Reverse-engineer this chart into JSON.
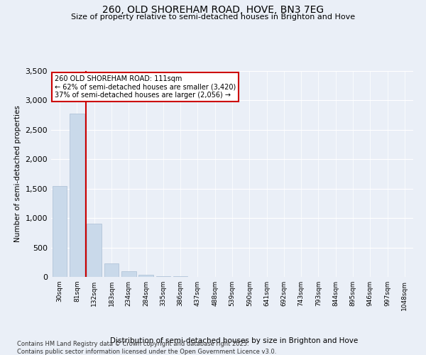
{
  "title1": "260, OLD SHOREHAM ROAD, HOVE, BN3 7EG",
  "title2": "Size of property relative to semi-detached houses in Brighton and Hove",
  "xlabel": "Distribution of semi-detached houses by size in Brighton and Hove",
  "ylabel": "Number of semi-detached properties",
  "bar_color": "#c9d9ea",
  "bar_edge_color": "#aabfd4",
  "categories": [
    "30sqm",
    "81sqm",
    "132sqm",
    "183sqm",
    "234sqm",
    "284sqm",
    "335sqm",
    "386sqm",
    "437sqm",
    "488sqm",
    "539sqm",
    "590sqm",
    "641sqm",
    "692sqm",
    "743sqm",
    "793sqm",
    "844sqm",
    "895sqm",
    "946sqm",
    "997sqm",
    "1048sqm"
  ],
  "values": [
    1540,
    2770,
    900,
    230,
    100,
    35,
    18,
    8,
    0,
    0,
    0,
    0,
    0,
    0,
    0,
    0,
    0,
    0,
    0,
    0,
    0
  ],
  "ylim": [
    0,
    3500
  ],
  "yticks": [
    0,
    500,
    1000,
    1500,
    2000,
    2500,
    3000,
    3500
  ],
  "property_bin_index": 1,
  "annotation_title": "260 OLD SHOREHAM ROAD: 111sqm",
  "annotation_line1": "← 62% of semi-detached houses are smaller (3,420)",
  "annotation_line2": "37% of semi-detached houses are larger (2,056) →",
  "vline_color": "#cc0000",
  "annotation_box_color": "#ffffff",
  "annotation_box_edge": "#cc0000",
  "background_color": "#eaeff7",
  "plot_bg_color": "#eaeff7",
  "footer1": "Contains HM Land Registry data © Crown copyright and database right 2025.",
  "footer2": "Contains public sector information licensed under the Open Government Licence v3.0."
}
